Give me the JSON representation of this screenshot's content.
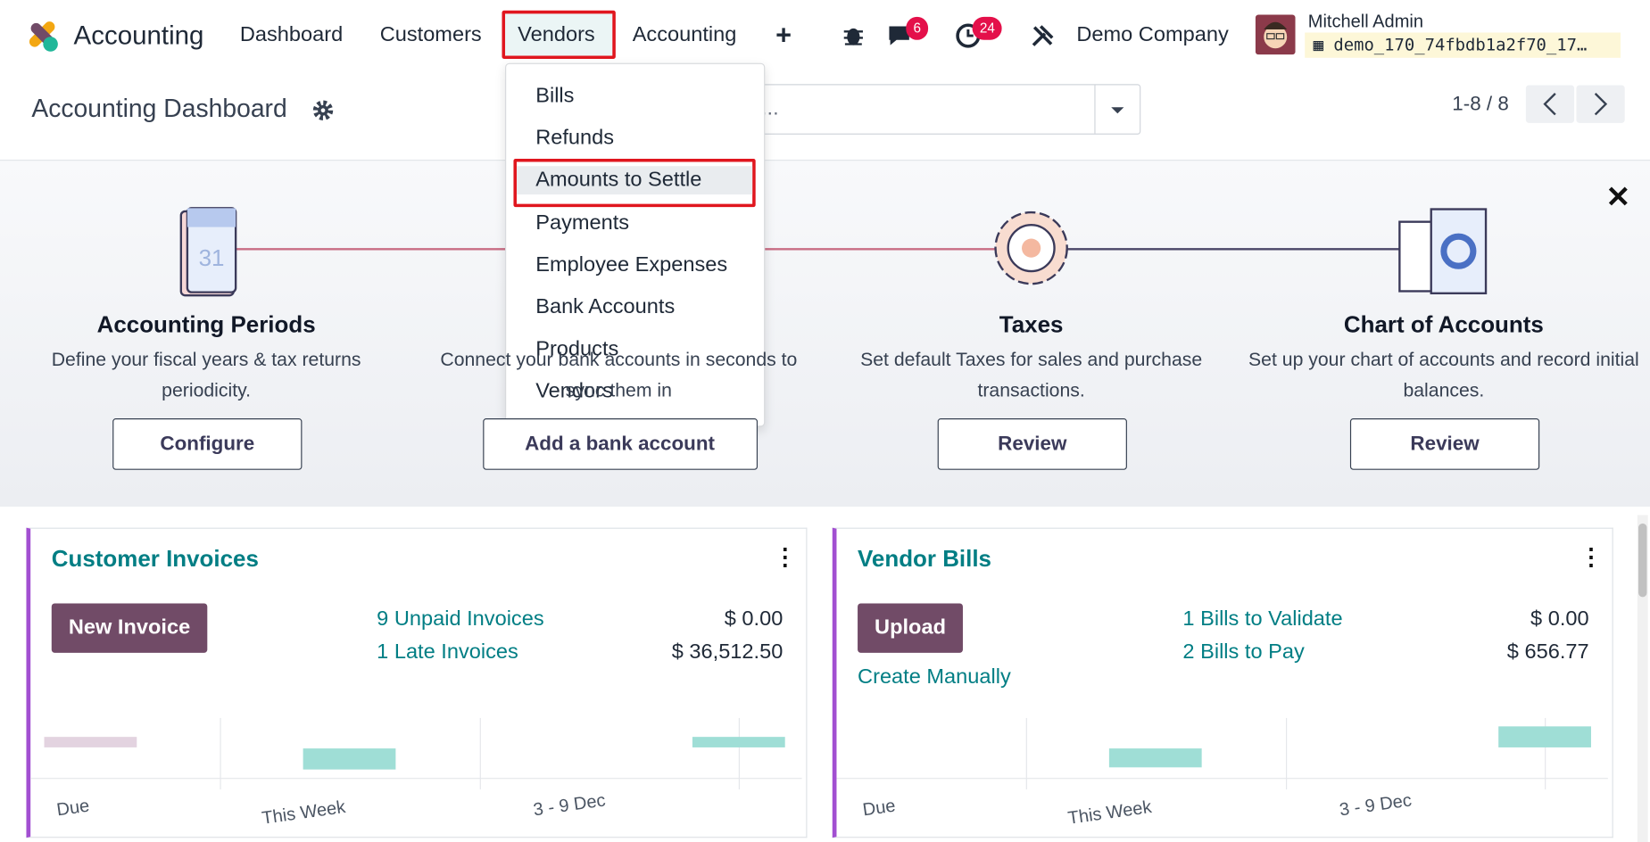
{
  "navbar": {
    "app": "Accounting",
    "menu": [
      "Dashboard",
      "Customers",
      "Vendors",
      "Accounting"
    ],
    "messages_count": "6",
    "activities_count": "24",
    "company": "Demo Company",
    "user": "Mitchell Admin",
    "database": "demo_170_74fbdb1a2f70_17…"
  },
  "dropdown": {
    "items": [
      "Bills",
      "Refunds",
      "Amounts to Settle",
      "Payments",
      "Employee Expenses",
      "Bank Accounts",
      "Products",
      "Vendors"
    ]
  },
  "control_panel": {
    "title": "Accounting Dashboard",
    "search_placeholder": "Search...",
    "pager": "1-8 / 8"
  },
  "onboarding": {
    "steps": [
      {
        "title": "Accounting Periods",
        "description": "Define your fiscal years & tax returns periodicity.",
        "button": "Configure"
      },
      {
        "description": "Connect your bank accounts in seconds to sync them in",
        "button": "Add a bank account"
      },
      {
        "title": "Taxes",
        "description": "Set default Taxes for sales and purchase transactions.",
        "button": "Review"
      },
      {
        "title": "Chart of Accounts",
        "description": "Set up your chart of accounts and record initial balances.",
        "button": "Review"
      }
    ]
  },
  "journals": [
    {
      "title": "Customer Invoices",
      "button": "New Invoice",
      "stats": [
        {
          "label": "9 Unpaid Invoices",
          "amount": "$ 0.00"
        },
        {
          "label": "1 Late Invoices",
          "amount": "$ 36,512.50"
        }
      ],
      "graph_labels": [
        "Due",
        "This Week",
        "3 - 9 Dec"
      ]
    },
    {
      "title": "Vendor Bills",
      "button": "Upload",
      "link": "Create Manually",
      "stats": [
        {
          "label": "1 Bills to Validate",
          "amount": "$ 0.00"
        },
        {
          "label": "2 Bills to Pay",
          "amount": "$ 656.77"
        }
      ],
      "graph_labels": [
        "Due",
        "This Week",
        "3 - 9 Dec"
      ]
    }
  ]
}
